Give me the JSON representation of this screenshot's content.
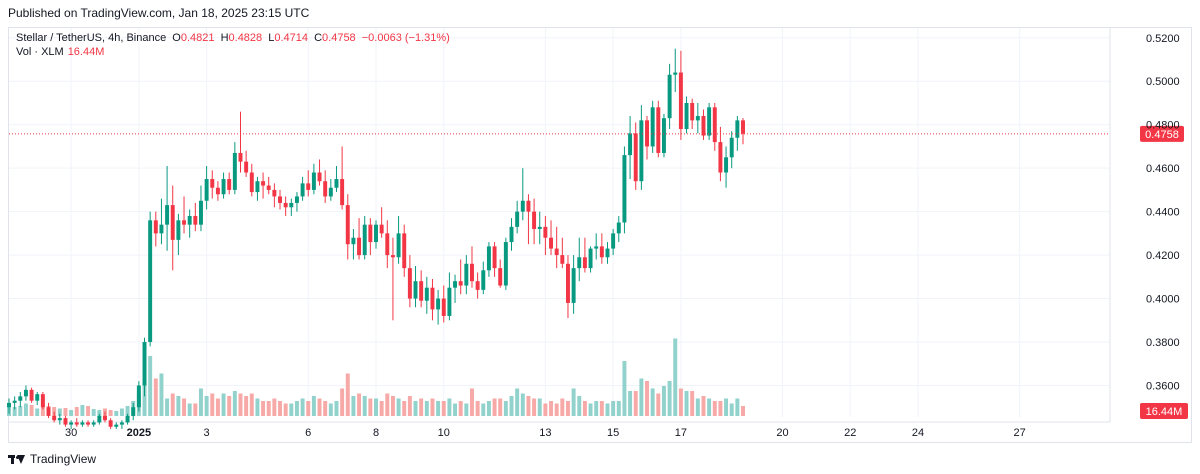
{
  "header": {
    "published": "Published on TradingView.com, Jan 18, 2025 23:15 UTC"
  },
  "legend": {
    "symbol": "Stellar / TetherUS, 4h, Binance",
    "o_label": "O",
    "o_value": "0.4821",
    "h_label": "H",
    "h_value": "0.4828",
    "l_label": "L",
    "l_value": "0.4714",
    "c_label": "C",
    "c_value": "0.4758",
    "change": "−0.0063 (−1.31%)",
    "vol_label": "Vol · XLM",
    "vol_value": "16.44M"
  },
  "footer": {
    "brand": "TradingView"
  },
  "colors": {
    "up": "#089981",
    "down": "#f23645",
    "up_vol": "#92d2cc",
    "down_vol": "#f7a9a7",
    "grid": "#f0f3fa",
    "text": "#131722"
  },
  "chart_data": {
    "type": "candlestick",
    "interval": "4h",
    "ylim": [
      0.3455,
      0.5245
    ],
    "y_ticks": [
      "0.5200",
      "0.5000",
      "0.4800",
      "0.4600",
      "0.4400",
      "0.4200",
      "0.4000",
      "0.3800",
      "0.3600"
    ],
    "last_price_label": "0.4758",
    "last_price": 0.4758,
    "volume_label": "16.44M",
    "x_ticks": [
      {
        "label": "30",
        "t": 0
      },
      {
        "label": "2025",
        "t": 12
      },
      {
        "label": "3",
        "t": 24
      },
      {
        "label": "6",
        "t": 42
      },
      {
        "label": "8",
        "t": 54
      },
      {
        "label": "10",
        "t": 66
      },
      {
        "label": "13",
        "t": 84
      },
      {
        "label": "15",
        "t": 96
      },
      {
        "label": "17",
        "t": 108
      },
      {
        "label": "20",
        "t": 126
      },
      {
        "label": "22",
        "t": 138
      },
      {
        "label": "24",
        "t": 150
      },
      {
        "label": "27",
        "t": 168
      }
    ],
    "x_range": [
      -11,
      184
    ],
    "candles": [
      [
        0.35,
        0.354,
        0.347,
        0.352,
        0.22
      ],
      [
        0.352,
        0.355,
        0.349,
        0.353,
        0.18
      ],
      [
        0.353,
        0.357,
        0.35,
        0.355,
        0.2
      ],
      [
        0.355,
        0.36,
        0.353,
        0.358,
        0.25
      ],
      [
        0.358,
        0.359,
        0.352,
        0.353,
        0.22
      ],
      [
        0.353,
        0.357,
        0.351,
        0.356,
        0.15
      ],
      [
        0.356,
        0.357,
        0.349,
        0.35,
        0.25
      ],
      [
        0.35,
        0.352,
        0.345,
        0.346,
        0.2
      ],
      [
        0.346,
        0.348,
        0.343,
        0.344,
        0.18
      ],
      [
        0.344,
        0.347,
        0.342,
        0.345,
        0.15
      ],
      [
        0.345,
        0.346,
        0.341,
        0.342,
        0.16
      ],
      [
        0.342,
        0.344,
        0.34,
        0.343,
        0.12
      ],
      [
        0.343,
        0.345,
        0.341,
        0.342,
        0.18
      ],
      [
        0.342,
        0.344,
        0.341,
        0.343,
        0.22
      ],
      [
        0.343,
        0.344,
        0.341,
        0.342,
        0.2
      ],
      [
        0.342,
        0.344,
        0.341,
        0.343,
        0.14
      ],
      [
        0.343,
        0.347,
        0.342,
        0.346,
        0.12
      ],
      [
        0.346,
        0.348,
        0.343,
        0.344,
        0.15
      ],
      [
        0.344,
        0.345,
        0.34,
        0.341,
        0.12
      ],
      [
        0.341,
        0.343,
        0.34,
        0.342,
        0.1
      ],
      [
        0.342,
        0.344,
        0.34,
        0.343,
        0.15
      ],
      [
        0.343,
        0.347,
        0.342,
        0.346,
        0.2
      ],
      [
        0.346,
        0.352,
        0.344,
        0.35,
        0.3
      ],
      [
        0.35,
        0.362,
        0.348,
        0.36,
        0.45
      ],
      [
        0.36,
        0.382,
        0.355,
        0.38,
        0.65
      ],
      [
        0.38,
        0.44,
        0.378,
        0.436,
        1.2
      ],
      [
        0.436,
        0.44,
        0.424,
        0.43,
        0.75
      ],
      [
        0.43,
        0.446,
        0.425,
        0.434,
        0.85
      ],
      [
        0.434,
        0.461,
        0.422,
        0.443,
        0.35
      ],
      [
        0.443,
        0.452,
        0.413,
        0.427,
        0.45
      ],
      [
        0.427,
        0.439,
        0.42,
        0.436,
        0.4
      ],
      [
        0.436,
        0.447,
        0.43,
        0.434,
        0.35
      ],
      [
        0.434,
        0.441,
        0.428,
        0.438,
        0.25
      ],
      [
        0.438,
        0.444,
        0.431,
        0.434,
        0.25
      ],
      [
        0.434,
        0.452,
        0.431,
        0.445,
        0.55
      ],
      [
        0.445,
        0.461,
        0.441,
        0.455,
        0.4
      ],
      [
        0.455,
        0.459,
        0.446,
        0.451,
        0.45
      ],
      [
        0.451,
        0.454,
        0.445,
        0.448,
        0.35
      ],
      [
        0.448,
        0.458,
        0.446,
        0.455,
        0.45
      ],
      [
        0.455,
        0.458,
        0.448,
        0.45,
        0.4
      ],
      [
        0.45,
        0.472,
        0.448,
        0.467,
        0.5
      ],
      [
        0.467,
        0.486,
        0.458,
        0.463,
        0.45
      ],
      [
        0.463,
        0.468,
        0.456,
        0.458,
        0.4
      ],
      [
        0.458,
        0.462,
        0.447,
        0.449,
        0.45
      ],
      [
        0.449,
        0.456,
        0.445,
        0.454,
        0.35
      ],
      [
        0.454,
        0.458,
        0.446,
        0.452,
        0.3
      ],
      [
        0.452,
        0.456,
        0.448,
        0.45,
        0.3
      ],
      [
        0.45,
        0.453,
        0.442,
        0.447,
        0.35
      ],
      [
        0.447,
        0.45,
        0.441,
        0.444,
        0.3
      ],
      [
        0.444,
        0.447,
        0.438,
        0.442,
        0.25
      ],
      [
        0.442,
        0.446,
        0.438,
        0.444,
        0.25
      ],
      [
        0.444,
        0.449,
        0.44,
        0.447,
        0.3
      ],
      [
        0.447,
        0.456,
        0.445,
        0.453,
        0.35
      ],
      [
        0.453,
        0.459,
        0.447,
        0.45,
        0.3
      ],
      [
        0.45,
        0.462,
        0.448,
        0.458,
        0.4
      ],
      [
        0.458,
        0.464,
        0.452,
        0.454,
        0.35
      ],
      [
        0.454,
        0.459,
        0.444,
        0.447,
        0.3
      ],
      [
        0.447,
        0.455,
        0.445,
        0.451,
        0.25
      ],
      [
        0.451,
        0.461,
        0.449,
        0.455,
        0.3
      ],
      [
        0.455,
        0.47,
        0.441,
        0.443,
        0.55
      ],
      [
        0.443,
        0.448,
        0.418,
        0.425,
        0.85
      ],
      [
        0.425,
        0.432,
        0.418,
        0.428,
        0.4
      ],
      [
        0.428,
        0.437,
        0.418,
        0.42,
        0.45
      ],
      [
        0.42,
        0.438,
        0.418,
        0.434,
        0.4
      ],
      [
        0.434,
        0.437,
        0.42,
        0.426,
        0.35
      ],
      [
        0.426,
        0.436,
        0.423,
        0.434,
        0.35
      ],
      [
        0.434,
        0.442,
        0.428,
        0.43,
        0.3
      ],
      [
        0.43,
        0.436,
        0.414,
        0.42,
        0.45
      ],
      [
        0.42,
        0.428,
        0.39,
        0.419,
        0.4
      ],
      [
        0.419,
        0.438,
        0.416,
        0.43,
        0.35
      ],
      [
        0.43,
        0.434,
        0.41,
        0.414,
        0.3
      ],
      [
        0.414,
        0.42,
        0.396,
        0.4,
        0.4
      ],
      [
        0.4,
        0.415,
        0.396,
        0.408,
        0.3
      ],
      [
        0.408,
        0.413,
        0.396,
        0.399,
        0.35
      ],
      [
        0.399,
        0.41,
        0.393,
        0.405,
        0.3
      ],
      [
        0.405,
        0.409,
        0.39,
        0.395,
        0.35
      ],
      [
        0.395,
        0.404,
        0.388,
        0.4,
        0.3
      ],
      [
        0.4,
        0.406,
        0.389,
        0.392,
        0.3
      ],
      [
        0.392,
        0.412,
        0.39,
        0.405,
        0.35
      ],
      [
        0.405,
        0.411,
        0.398,
        0.408,
        0.25
      ],
      [
        0.408,
        0.418,
        0.402,
        0.406,
        0.3
      ],
      [
        0.406,
        0.42,
        0.402,
        0.416,
        0.25
      ],
      [
        0.416,
        0.424,
        0.405,
        0.408,
        0.55
      ],
      [
        0.408,
        0.412,
        0.4,
        0.404,
        0.3
      ],
      [
        0.404,
        0.417,
        0.402,
        0.413,
        0.25
      ],
      [
        0.413,
        0.426,
        0.41,
        0.424,
        0.3
      ],
      [
        0.424,
        0.426,
        0.41,
        0.414,
        0.35
      ],
      [
        0.414,
        0.418,
        0.405,
        0.406,
        0.35
      ],
      [
        0.406,
        0.428,
        0.404,
        0.426,
        0.3
      ],
      [
        0.426,
        0.437,
        0.422,
        0.433,
        0.4
      ],
      [
        0.433,
        0.445,
        0.43,
        0.44,
        0.55
      ],
      [
        0.44,
        0.46,
        0.436,
        0.445,
        0.45
      ],
      [
        0.445,
        0.448,
        0.425,
        0.44,
        0.4
      ],
      [
        0.44,
        0.446,
        0.425,
        0.432,
        0.35
      ],
      [
        0.432,
        0.44,
        0.425,
        0.433,
        0.35
      ],
      [
        0.433,
        0.438,
        0.42,
        0.428,
        0.25
      ],
      [
        0.428,
        0.436,
        0.42,
        0.423,
        0.3
      ],
      [
        0.423,
        0.433,
        0.414,
        0.42,
        0.25
      ],
      [
        0.42,
        0.428,
        0.414,
        0.416,
        0.35
      ],
      [
        0.416,
        0.42,
        0.391,
        0.398,
        0.3
      ],
      [
        0.398,
        0.42,
        0.393,
        0.414,
        0.55
      ],
      [
        0.414,
        0.428,
        0.408,
        0.419,
        0.4
      ],
      [
        0.419,
        0.428,
        0.412,
        0.414,
        0.3
      ],
      [
        0.414,
        0.424,
        0.412,
        0.423,
        0.25
      ],
      [
        0.423,
        0.43,
        0.418,
        0.424,
        0.3
      ],
      [
        0.424,
        0.43,
        0.416,
        0.419,
        0.3
      ],
      [
        0.419,
        0.426,
        0.416,
        0.423,
        0.25
      ],
      [
        0.423,
        0.432,
        0.42,
        0.43,
        0.3
      ],
      [
        0.43,
        0.438,
        0.426,
        0.435,
        0.3
      ],
      [
        0.435,
        0.47,
        0.43,
        0.466,
        1.1
      ],
      [
        0.466,
        0.484,
        0.455,
        0.476,
        0.5
      ],
      [
        0.476,
        0.481,
        0.45,
        0.454,
        0.5
      ],
      [
        0.454,
        0.489,
        0.45,
        0.482,
        0.75
      ],
      [
        0.482,
        0.484,
        0.464,
        0.47,
        0.7
      ],
      [
        0.47,
        0.491,
        0.467,
        0.488,
        0.55
      ],
      [
        0.488,
        0.491,
        0.465,
        0.467,
        0.45
      ],
      [
        0.467,
        0.485,
        0.465,
        0.483,
        0.6
      ],
      [
        0.483,
        0.508,
        0.478,
        0.503,
        0.7
      ],
      [
        0.503,
        0.515,
        0.495,
        0.504,
        1.55
      ],
      [
        0.504,
        0.514,
        0.473,
        0.478,
        0.55
      ],
      [
        0.478,
        0.493,
        0.476,
        0.49,
        0.5
      ],
      [
        0.49,
        0.492,
        0.478,
        0.482,
        0.5
      ],
      [
        0.482,
        0.49,
        0.476,
        0.484,
        0.35
      ],
      [
        0.484,
        0.487,
        0.473,
        0.475,
        0.4
      ],
      [
        0.475,
        0.49,
        0.473,
        0.488,
        0.35
      ],
      [
        0.488,
        0.49,
        0.468,
        0.472,
        0.3
      ],
      [
        0.472,
        0.479,
        0.454,
        0.458,
        0.3
      ],
      [
        0.458,
        0.47,
        0.451,
        0.465,
        0.35
      ],
      [
        0.465,
        0.477,
        0.46,
        0.474,
        0.25
      ],
      [
        0.474,
        0.484,
        0.468,
        0.482,
        0.35
      ],
      [
        0.482,
        0.483,
        0.471,
        0.4758,
        0.2
      ]
    ]
  }
}
